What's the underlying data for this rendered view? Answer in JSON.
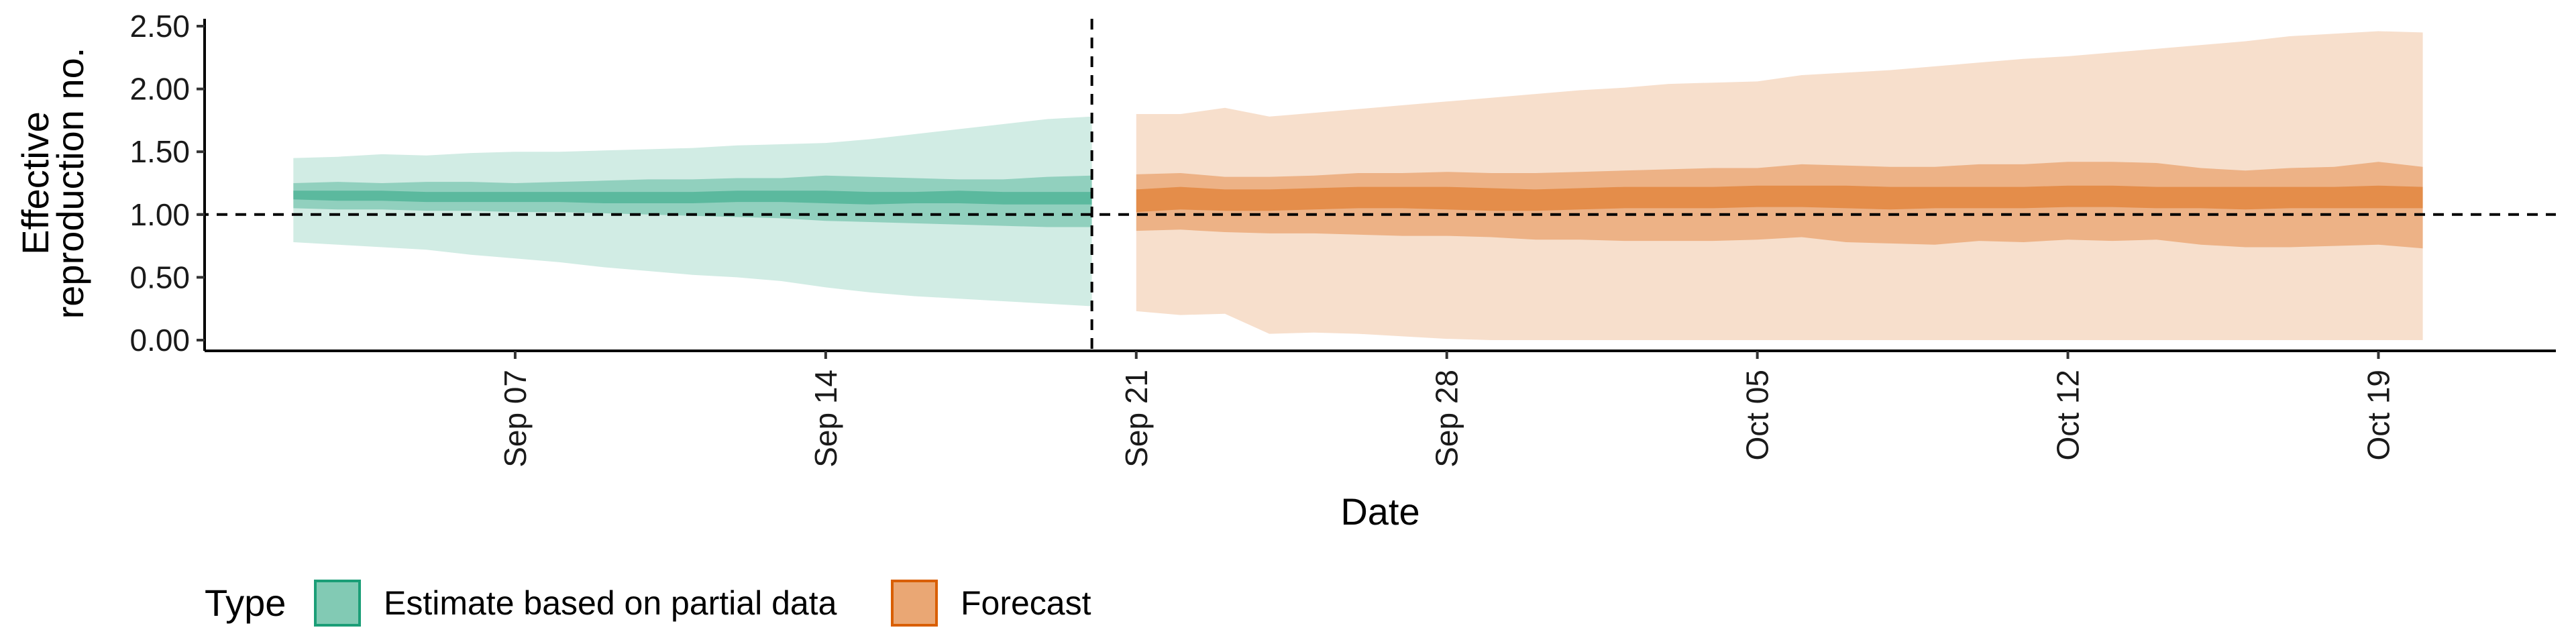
{
  "chart_data": {
    "type": "area",
    "title": "",
    "xlabel": "Date",
    "ylabel": [
      "Effective",
      "reproduction no."
    ],
    "ylim": [
      0,
      2.6
    ],
    "xlim": [
      "2020-08-31",
      "2020-10-23"
    ],
    "y_ticks": [
      "0.00",
      "0.50",
      "1.00",
      "1.50",
      "2.00",
      "2.50"
    ],
    "x_ticks": [
      {
        "date": "2020-09-07",
        "label": "Sep 07"
      },
      {
        "date": "2020-09-14",
        "label": "Sep 14"
      },
      {
        "date": "2020-09-21",
        "label": "Sep 21"
      },
      {
        "date": "2020-09-28",
        "label": "Sep 28"
      },
      {
        "date": "2020-10-05",
        "label": "Oct 05"
      },
      {
        "date": "2020-10-12",
        "label": "Oct 12"
      },
      {
        "date": "2020-10-19",
        "label": "Oct 19"
      }
    ],
    "reference_lines": {
      "horizontal_y": 1.0,
      "vertical_date": "2020-09-20"
    },
    "legend": {
      "title": "Type",
      "position": "bottom-left",
      "items": [
        {
          "label": "Estimate based on partial data",
          "color": "#1b9e77"
        },
        {
          "label": "Forecast",
          "color": "#d95f02"
        }
      ]
    },
    "series": [
      {
        "name": "Estimate based on partial data",
        "color": "#1b9e77",
        "dates": [
          "2020-09-02",
          "2020-09-03",
          "2020-09-04",
          "2020-09-05",
          "2020-09-06",
          "2020-09-07",
          "2020-09-08",
          "2020-09-09",
          "2020-09-10",
          "2020-09-11",
          "2020-09-12",
          "2020-09-13",
          "2020-09-14",
          "2020-09-15",
          "2020-09-16",
          "2020-09-17",
          "2020-09-18",
          "2020-09-19",
          "2020-09-20"
        ],
        "lower_90": [
          0.78,
          0.76,
          0.74,
          0.72,
          0.68,
          0.65,
          0.62,
          0.58,
          0.55,
          0.52,
          0.5,
          0.47,
          0.42,
          0.38,
          0.35,
          0.33,
          0.31,
          0.29,
          0.27
        ],
        "upper_90": [
          1.45,
          1.46,
          1.48,
          1.47,
          1.49,
          1.5,
          1.5,
          1.51,
          1.52,
          1.53,
          1.55,
          1.56,
          1.57,
          1.6,
          1.64,
          1.68,
          1.72,
          1.76,
          1.78
        ],
        "lower_50": [
          1.05,
          1.04,
          1.04,
          1.03,
          1.03,
          1.02,
          1.02,
          1.01,
          1.0,
          0.99,
          0.98,
          0.97,
          0.95,
          0.94,
          0.93,
          0.92,
          0.91,
          0.9,
          0.9
        ],
        "upper_50": [
          1.25,
          1.26,
          1.25,
          1.26,
          1.26,
          1.25,
          1.26,
          1.27,
          1.28,
          1.28,
          1.29,
          1.29,
          1.31,
          1.3,
          1.29,
          1.28,
          1.28,
          1.3,
          1.31
        ],
        "lower_20": [
          1.12,
          1.11,
          1.11,
          1.1,
          1.1,
          1.1,
          1.1,
          1.09,
          1.09,
          1.09,
          1.1,
          1.1,
          1.09,
          1.08,
          1.09,
          1.09,
          1.08,
          1.08,
          1.08
        ],
        "upper_20": [
          1.19,
          1.19,
          1.19,
          1.18,
          1.18,
          1.18,
          1.18,
          1.18,
          1.18,
          1.18,
          1.19,
          1.19,
          1.19,
          1.18,
          1.18,
          1.19,
          1.18,
          1.18,
          1.18
        ]
      },
      {
        "name": "Forecast",
        "color": "#d95f02",
        "dates": [
          "2020-09-21",
          "2020-09-22",
          "2020-09-23",
          "2020-09-24",
          "2020-09-25",
          "2020-09-26",
          "2020-09-27",
          "2020-09-28",
          "2020-09-29",
          "2020-09-30",
          "2020-10-01",
          "2020-10-02",
          "2020-10-03",
          "2020-10-04",
          "2020-10-05",
          "2020-10-06",
          "2020-10-07",
          "2020-10-08",
          "2020-10-09",
          "2020-10-10",
          "2020-10-11",
          "2020-10-12",
          "2020-10-13",
          "2020-10-14",
          "2020-10-15",
          "2020-10-16",
          "2020-10-17",
          "2020-10-18",
          "2020-10-19",
          "2020-10-20"
        ],
        "lower_90": [
          0.23,
          0.2,
          0.21,
          0.05,
          0.06,
          0.05,
          0.03,
          0.01,
          0.0,
          0.0,
          0.0,
          0.0,
          0.0,
          0.0,
          0.0,
          0.0,
          0.0,
          0.0,
          0.0,
          0.0,
          0.0,
          0.0,
          0.0,
          0.0,
          0.0,
          0.0,
          0.0,
          0.0,
          0.0,
          0.0
        ],
        "upper_90": [
          1.8,
          1.8,
          1.85,
          1.78,
          1.81,
          1.84,
          1.87,
          1.9,
          1.93,
          1.96,
          1.99,
          2.01,
          2.04,
          2.05,
          2.06,
          2.11,
          2.13,
          2.15,
          2.18,
          2.21,
          2.24,
          2.26,
          2.29,
          2.32,
          2.35,
          2.38,
          2.42,
          2.44,
          2.46,
          2.45
        ],
        "lower_50": [
          0.87,
          0.88,
          0.86,
          0.85,
          0.85,
          0.84,
          0.83,
          0.83,
          0.82,
          0.8,
          0.8,
          0.79,
          0.79,
          0.79,
          0.8,
          0.82,
          0.78,
          0.77,
          0.76,
          0.79,
          0.78,
          0.8,
          0.79,
          0.8,
          0.76,
          0.74,
          0.74,
          0.75,
          0.76,
          0.73
        ],
        "upper_50": [
          1.32,
          1.33,
          1.3,
          1.3,
          1.31,
          1.33,
          1.33,
          1.34,
          1.33,
          1.33,
          1.34,
          1.35,
          1.36,
          1.37,
          1.37,
          1.4,
          1.39,
          1.38,
          1.38,
          1.4,
          1.4,
          1.42,
          1.42,
          1.41,
          1.37,
          1.35,
          1.37,
          1.38,
          1.42,
          1.38
        ],
        "lower_20": [
          1.02,
          1.04,
          1.03,
          1.03,
          1.04,
          1.05,
          1.05,
          1.04,
          1.03,
          1.03,
          1.04,
          1.05,
          1.05,
          1.05,
          1.06,
          1.06,
          1.05,
          1.04,
          1.05,
          1.05,
          1.05,
          1.06,
          1.06,
          1.05,
          1.05,
          1.04,
          1.05,
          1.05,
          1.05,
          1.05
        ],
        "upper_20": [
          1.2,
          1.22,
          1.2,
          1.2,
          1.21,
          1.22,
          1.22,
          1.22,
          1.21,
          1.2,
          1.21,
          1.22,
          1.22,
          1.22,
          1.23,
          1.23,
          1.23,
          1.22,
          1.22,
          1.22,
          1.22,
          1.23,
          1.23,
          1.22,
          1.22,
          1.22,
          1.22,
          1.22,
          1.23,
          1.22
        ]
      }
    ]
  }
}
